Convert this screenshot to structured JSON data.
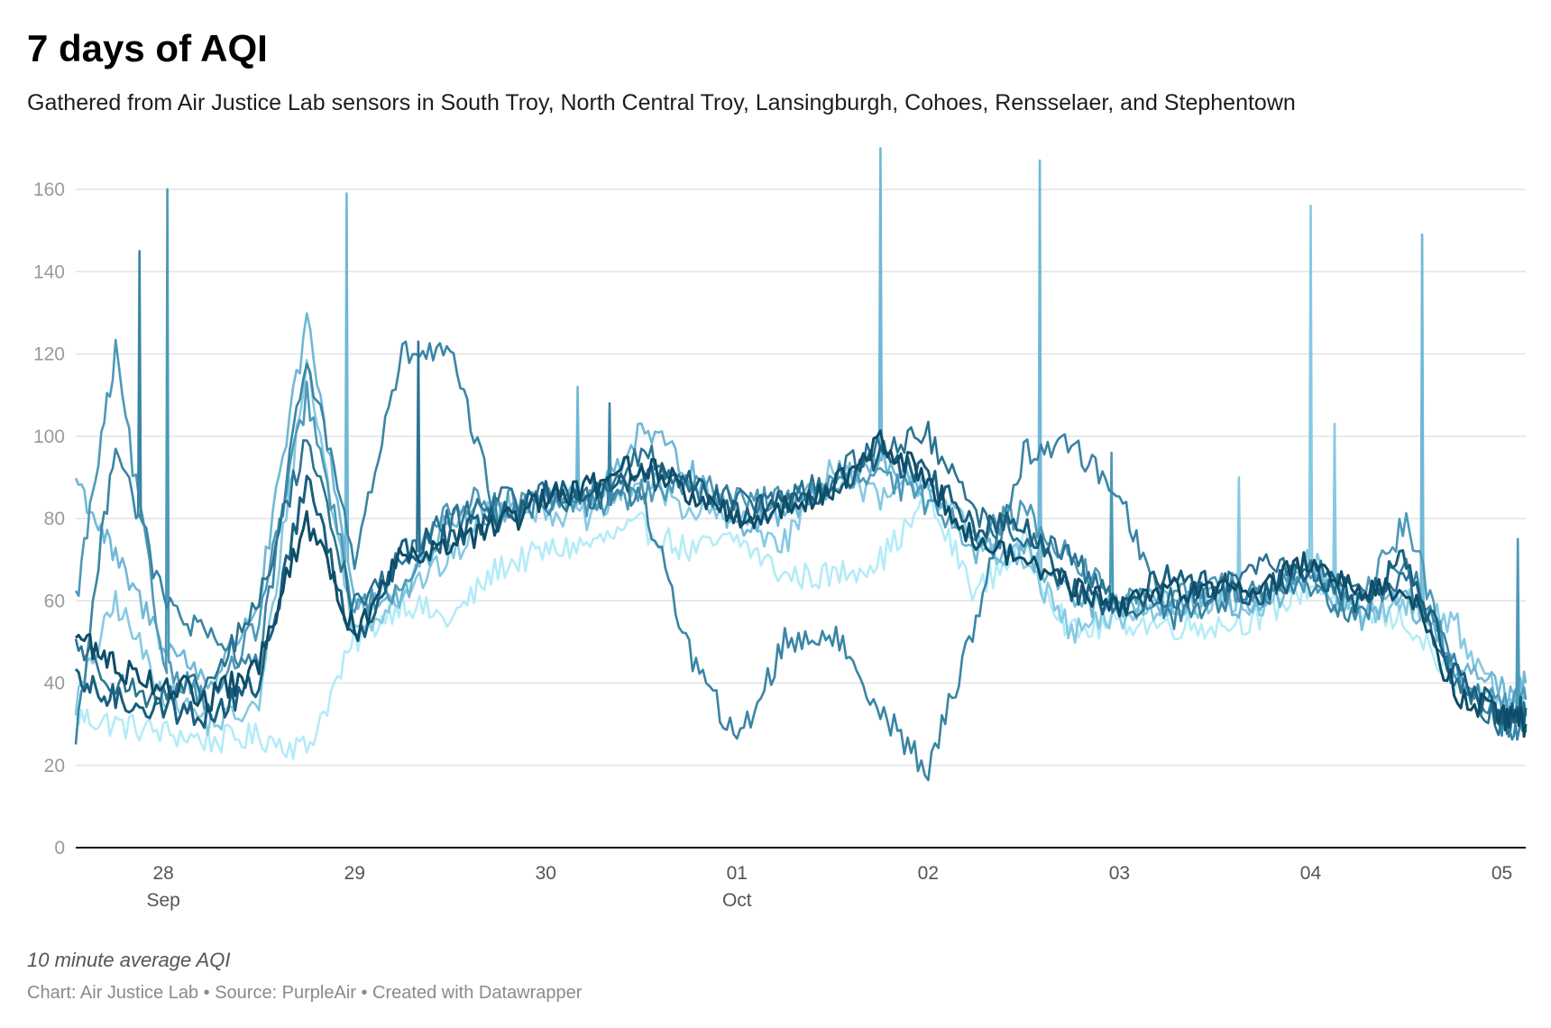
{
  "header": {
    "title": "7 days of AQI",
    "subtitle": "Gathered from Air Justice Lab sensors in South Troy, North Central Troy, Lansingburgh, Cohoes, Rensselaer, and Stephentown"
  },
  "footer": {
    "note": "10 minute average AQI",
    "credits": "Chart: Air Justice Lab • Source: PurpleAir • Created with Datawrapper"
  },
  "chart_data": {
    "type": "line",
    "title": "7 days of AQI",
    "subtitle": "Gathered from Air Justice Lab sensors in South Troy, North Central Troy, Lansingburgh, Cohoes, Rensselaer, and Stephentown",
    "xlabel": "",
    "ylabel": "",
    "ylim": [
      0,
      170
    ],
    "xlim": [
      "2020-09-27 13:00",
      "2020-10-05 03:00"
    ],
    "grid": true,
    "legend": "none",
    "y_ticks": [
      0,
      20,
      40,
      60,
      80,
      100,
      120,
      140,
      160
    ],
    "x_ticks": [
      {
        "day": "28",
        "month": "Sep",
        "t": "2020-09-28 00:00"
      },
      {
        "day": "29",
        "month": "",
        "t": "2020-09-29 00:00"
      },
      {
        "day": "30",
        "month": "",
        "t": "2020-09-30 00:00"
      },
      {
        "day": "01",
        "month": "Oct",
        "t": "2020-10-01 00:00"
      },
      {
        "day": "02",
        "month": "",
        "t": "2020-10-02 00:00"
      },
      {
        "day": "03",
        "month": "",
        "t": "2020-10-03 00:00"
      },
      {
        "day": "04",
        "month": "",
        "t": "2020-10-04 00:00"
      },
      {
        "day": "05",
        "month": "",
        "t": "2020-10-05 00:00"
      }
    ],
    "x": [
      "2020-09-27 13:00",
      "2020-09-27 18:00",
      "2020-09-28 00:00",
      "2020-09-28 06:00",
      "2020-09-28 12:00",
      "2020-09-28 18:00",
      "2020-09-29 00:00",
      "2020-09-29 06:00",
      "2020-09-29 12:00",
      "2020-09-29 18:00",
      "2020-09-30 00:00",
      "2020-09-30 06:00",
      "2020-09-30 12:00",
      "2020-09-30 18:00",
      "2020-10-01 00:00",
      "2020-10-01 06:00",
      "2020-10-01 12:00",
      "2020-10-01 18:00",
      "2020-10-02 00:00",
      "2020-10-02 06:00",
      "2020-10-02 12:00",
      "2020-10-02 18:00",
      "2020-10-03 00:00",
      "2020-10-03 06:00",
      "2020-10-03 12:00",
      "2020-10-03 18:00",
      "2020-10-04 00:00",
      "2020-10-04 06:00",
      "2020-10-04 12:00",
      "2020-10-04 18:00",
      "2020-10-05 00:00",
      "2020-10-05 03:00"
    ],
    "series": [
      {
        "color": "#b3ecf7",
        "values": [
          32,
          30,
          28,
          26,
          27,
          24,
          50,
          60,
          55,
          68,
          72,
          74,
          78,
          72,
          75,
          66,
          66,
          70,
          84,
          62,
          74,
          52,
          55,
          54,
          54,
          56,
          64,
          57,
          55,
          40,
          33,
          32
        ]
      },
      {
        "color": "#86c9e2",
        "values": [
          35,
          60,
          38,
          30,
          34,
          118,
          52,
          62,
          70,
          84,
          82,
          80,
          90,
          82,
          80,
          74,
          94,
          84,
          90,
          74,
          70,
          52,
          56,
          58,
          60,
          58,
          70,
          56,
          60,
          55,
          34,
          36
        ]
      },
      {
        "color": "#6fb8d6",
        "values": [
          90,
          70,
          50,
          40,
          60,
          128,
          60,
          60,
          80,
          82,
          86,
          84,
          102,
          92,
          78,
          82,
          88,
          94,
          86,
          72,
          72,
          60,
          58,
          60,
          60,
          58,
          66,
          56,
          60,
          45,
          38,
          40
        ]
      },
      {
        "color": "#4d99b8",
        "values": [
          60,
          120,
          45,
          35,
          55,
          110,
          58,
          64,
          84,
          84,
          84,
          84,
          86,
          88,
          86,
          84,
          88,
          90,
          84,
          76,
          82,
          70,
          60,
          60,
          64,
          62,
          66,
          58,
          80,
          42,
          34,
          36
        ]
      },
      {
        "color": "#3a85a5",
        "values": [
          27,
          100,
          60,
          50,
          45,
          120,
          70,
          120,
          120,
          80,
          84,
          86,
          86,
          48,
          25,
          50,
          52,
          34,
          18,
          56,
          96,
          98,
          86,
          56,
          60,
          62,
          64,
          56,
          70,
          44,
          30,
          28
        ]
      },
      {
        "color": "#2b7392",
        "values": [
          50,
          40,
          36,
          40,
          60,
          100,
          58,
          70,
          80,
          84,
          86,
          84,
          96,
          88,
          84,
          84,
          90,
          98,
          100,
          80,
          76,
          70,
          58,
          60,
          62,
          68,
          68,
          62,
          66,
          40,
          30,
          32
        ]
      },
      {
        "color": "#1a5f7e",
        "values": [
          40,
          36,
          34,
          32,
          40,
          90,
          50,
          72,
          76,
          80,
          86,
          86,
          90,
          90,
          82,
          84,
          86,
          96,
          90,
          78,
          78,
          62,
          58,
          66,
          64,
          62,
          68,
          60,
          70,
          42,
          32,
          34
        ]
      },
      {
        "color": "#0d4d68",
        "values": [
          52,
          44,
          40,
          36,
          44,
          80,
          52,
          72,
          74,
          78,
          84,
          88,
          94,
          86,
          80,
          82,
          88,
          98,
          90,
          74,
          70,
          64,
          58,
          64,
          62,
          64,
          70,
          62,
          64,
          38,
          32,
          30
        ]
      }
    ],
    "spikes": [
      {
        "series": 4,
        "t": "2020-09-27 21:00",
        "y": 145
      },
      {
        "series": 3,
        "t": "2020-09-28 00:30",
        "y": 160
      },
      {
        "series": 2,
        "t": "2020-09-28 23:00",
        "y": 159
      },
      {
        "series": 5,
        "t": "2020-09-29 08:00",
        "y": 123
      },
      {
        "series": 2,
        "t": "2020-09-30 04:00",
        "y": 112
      },
      {
        "series": 4,
        "t": "2020-09-30 08:00",
        "y": 108
      },
      {
        "series": 2,
        "t": "2020-10-01 18:00",
        "y": 170
      },
      {
        "series": 2,
        "t": "2020-10-02 14:00",
        "y": 167
      },
      {
        "series": 3,
        "t": "2020-10-02 23:00",
        "y": 96
      },
      {
        "series": 1,
        "t": "2020-10-03 15:00",
        "y": 90
      },
      {
        "series": 1,
        "t": "2020-10-04 00:00",
        "y": 156
      },
      {
        "series": 1,
        "t": "2020-10-04 03:00",
        "y": 103
      },
      {
        "series": 2,
        "t": "2020-10-04 14:00",
        "y": 149
      },
      {
        "series": 3,
        "t": "2020-10-05 02:00",
        "y": 75
      }
    ]
  }
}
